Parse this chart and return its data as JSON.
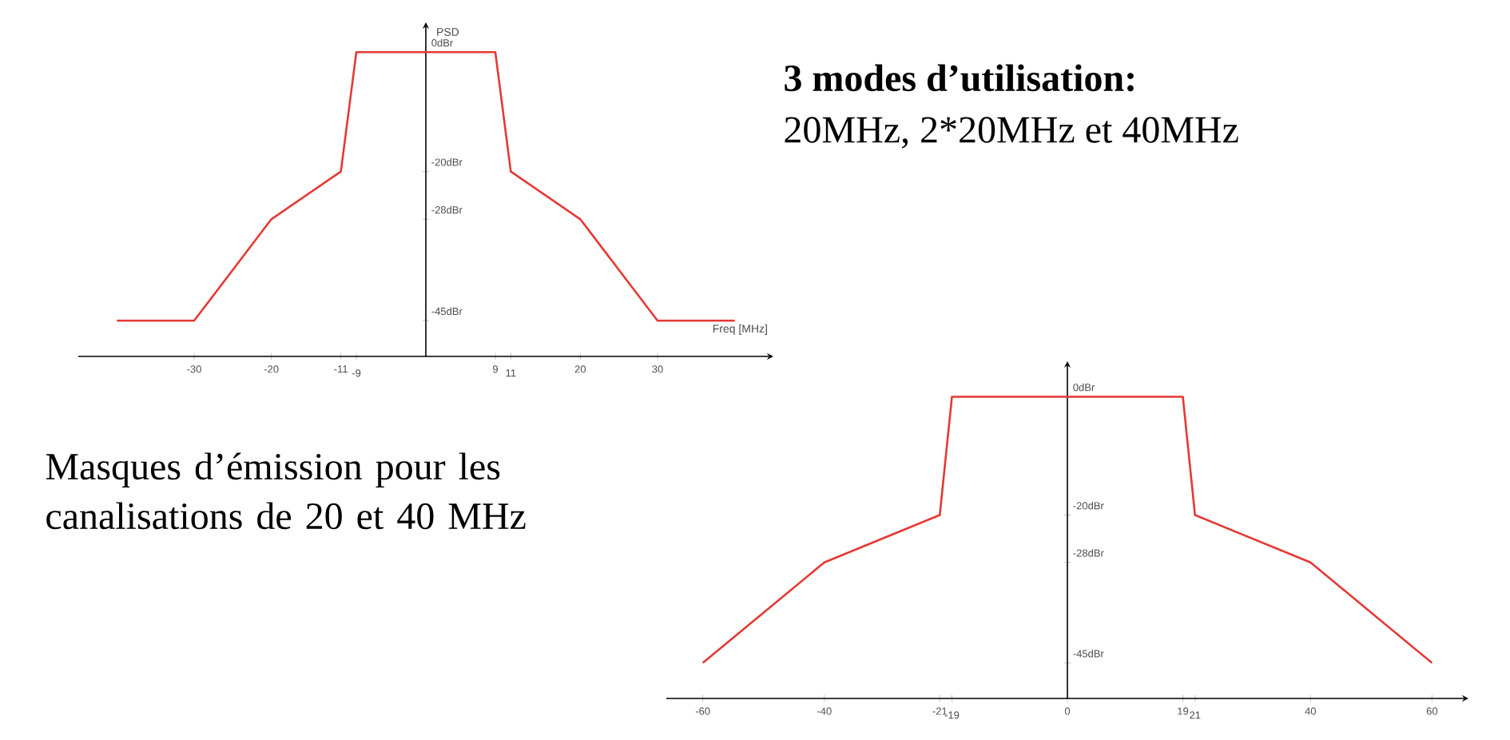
{
  "chart_data": [
    {
      "type": "line",
      "xlabel": "Freq [MHz]",
      "ylabel": "PSD",
      "series": [
        {
          "color": "#e53935",
          "x": [
            -40,
            -30,
            -20,
            -11,
            -9,
            9,
            11,
            20,
            30,
            40
          ],
          "values": [
            -45,
            -45,
            -28,
            -20,
            0,
            0,
            -20,
            -28,
            -45,
            -45
          ]
        }
      ],
      "xlim": [
        -45,
        45
      ],
      "ylim": [
        -51,
        5
      ],
      "xticks": [
        -30,
        -20,
        -11,
        -9,
        9,
        11,
        20,
        30
      ],
      "yticks": [
        {
          "value": 0,
          "label": "0dBr"
        },
        {
          "value": -20,
          "label": "-20dBr"
        },
        {
          "value": -28,
          "label": "-28dBr"
        },
        {
          "value": -45,
          "label": "-45dBr"
        }
      ],
      "annotations": [
        "3 modes d’utilisation:",
        "20MHz, 2*20MHz et 40MHz"
      ]
    },
    {
      "type": "line",
      "series": [
        {
          "color": "#e53935",
          "x": [
            -60,
            -40,
            -21,
            -19,
            19,
            21,
            40,
            60
          ],
          "values": [
            -45,
            -28,
            -20,
            0,
            0,
            -20,
            -28,
            -45
          ]
        }
      ],
      "xlim": [
        -66,
        66
      ],
      "ylim": [
        -51,
        6
      ],
      "xticks": [
        -60,
        -40,
        -21,
        -19,
        0,
        19,
        21,
        40,
        60
      ],
      "yticks": [
        {
          "value": 0,
          "label": "0dBr"
        },
        {
          "value": -20,
          "label": "-20dBr"
        },
        {
          "value": -28,
          "label": "-28dBr"
        },
        {
          "value": -45,
          "label": "-45dBr"
        }
      ],
      "annotations": [
        "Masques d’émission pour les canalisations de 20 et 40 MHz"
      ]
    }
  ]
}
